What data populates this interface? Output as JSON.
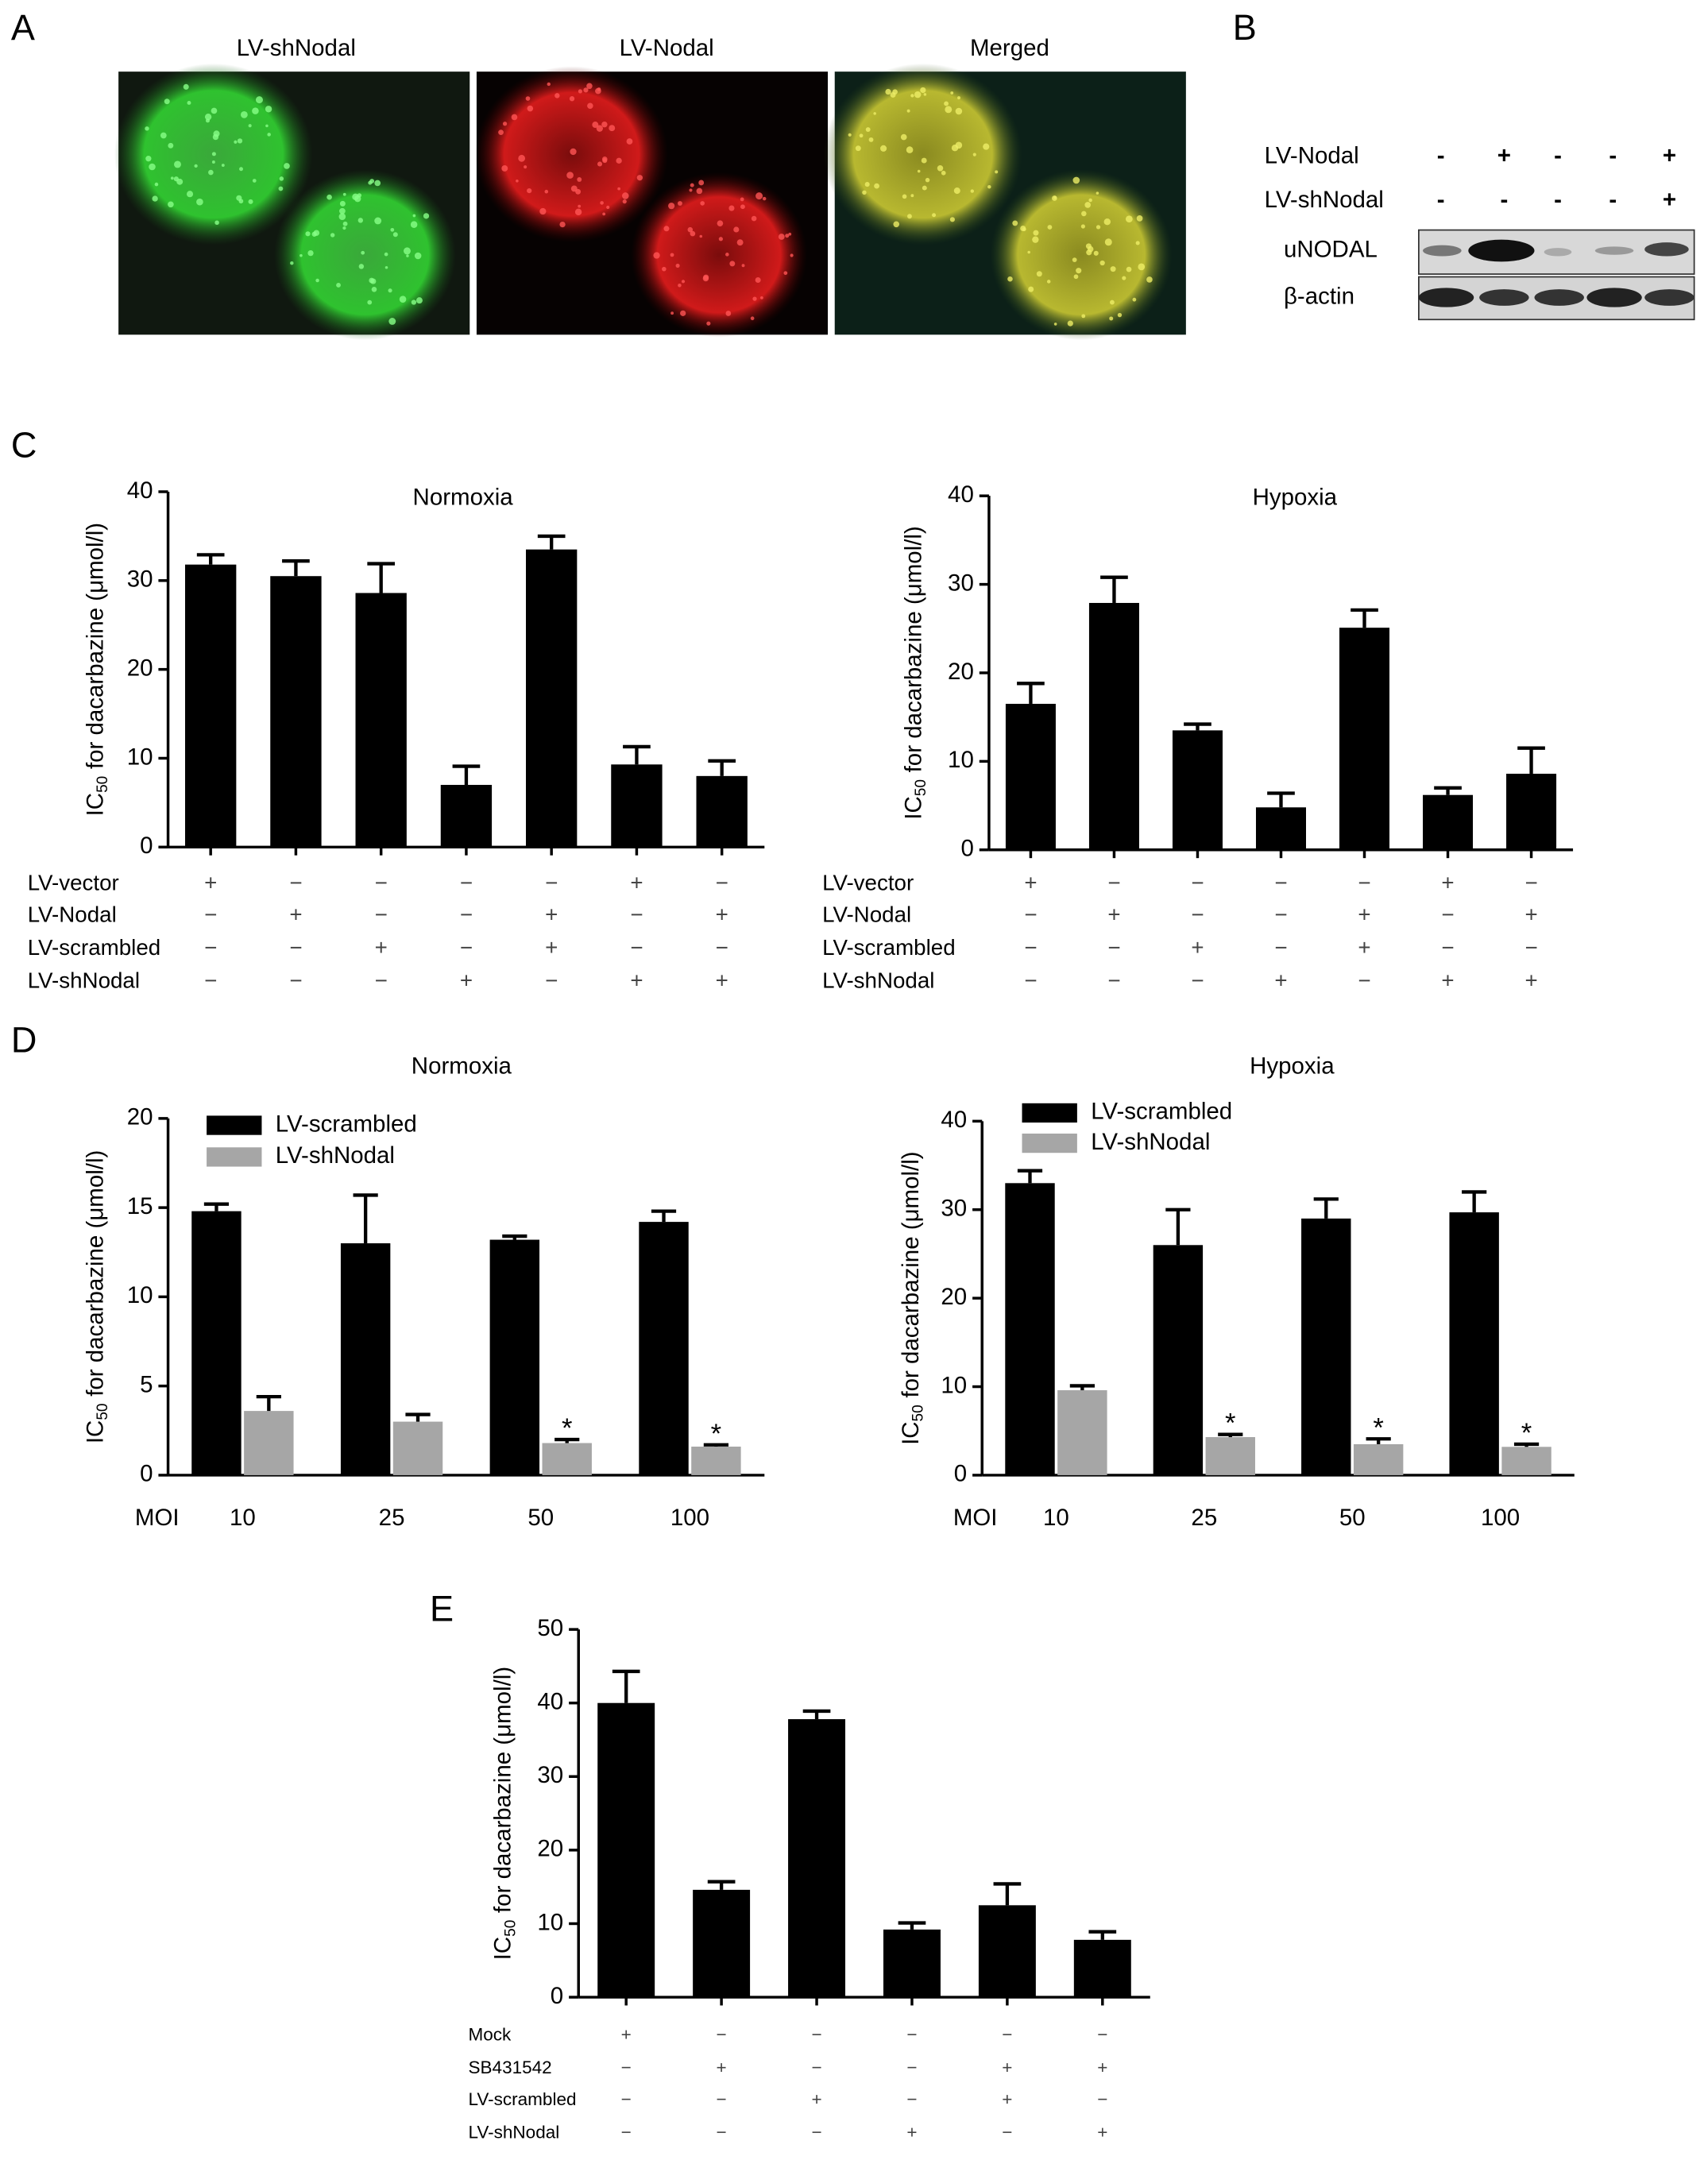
{
  "panel_labels": [
    "A",
    "B",
    "C",
    "D",
    "E"
  ],
  "panel_a": {
    "images": [
      "LV-shNodal",
      "LV-Nodal",
      "Merged"
    ]
  },
  "panel_b": {
    "conditions": [
      {
        "name": "LV-Nodal",
        "signs": [
          "-",
          "+",
          "-",
          "-",
          "+"
        ]
      },
      {
        "name": "LV-shNodal",
        "signs": [
          "-",
          "-",
          "-",
          "-",
          "+"
        ]
      }
    ],
    "bands": [
      "uNODAL",
      "β-actin"
    ]
  },
  "chart_data": [
    {
      "type": "bar",
      "title": "Normoxia",
      "y_label": [
        "IC",
        "50",
        "for dacarbazine (μmol/l)"
      ],
      "ylim": [
        0,
        40
      ],
      "yticks": [
        0,
        10,
        20,
        30,
        40
      ],
      "color": "#000000",
      "values": [
        31.8,
        30.5,
        28.6,
        7.0,
        33.5,
        9.3,
        8.0
      ],
      "errors": [
        1.1,
        1.7,
        3.3,
        2.1,
        1.5,
        2.0,
        1.7
      ],
      "conditions": [
        {
          "name": "LV-vector",
          "signs": [
            "+",
            "−",
            "−",
            "−",
            "−",
            "+",
            "−"
          ]
        },
        {
          "name": "LV-Nodal",
          "signs": [
            "−",
            "+",
            "−",
            "−",
            "+",
            "−",
            "+"
          ]
        },
        {
          "name": "LV-scrambled",
          "signs": [
            "−",
            "−",
            "+",
            "−",
            "+",
            "−",
            "−"
          ]
        },
        {
          "name": "LV-shNodal",
          "signs": [
            "−",
            "−",
            "−",
            "+",
            "−",
            "+",
            "+"
          ]
        }
      ]
    },
    {
      "type": "bar",
      "title": "Hypoxia",
      "y_label": [
        "IC",
        "50",
        "for dacarbazine (μmol/l)"
      ],
      "ylim": [
        0,
        40
      ],
      "yticks": [
        0,
        10,
        20,
        30,
        40
      ],
      "color": "#000000",
      "values": [
        16.5,
        27.9,
        13.5,
        4.8,
        25.1,
        6.2,
        8.6
      ],
      "errors": [
        2.3,
        2.9,
        0.7,
        1.6,
        2.0,
        0.8,
        2.9
      ],
      "conditions": [
        {
          "name": "LV-vector",
          "signs": [
            "+",
            "−",
            "−",
            "−",
            "−",
            "+",
            "−"
          ]
        },
        {
          "name": "LV-Nodal",
          "signs": [
            "−",
            "+",
            "−",
            "−",
            "+",
            "−",
            "+"
          ]
        },
        {
          "name": "LV-scrambled",
          "signs": [
            "−",
            "−",
            "+",
            "−",
            "+",
            "−",
            "−"
          ]
        },
        {
          "name": "LV-shNodal",
          "signs": [
            "−",
            "−",
            "−",
            "+",
            "−",
            "+",
            "+"
          ]
        }
      ]
    },
    {
      "type": "bar",
      "title": "Normoxia",
      "y_label": [
        "IC",
        "50",
        "for dacarbazine (μmol/l)"
      ],
      "x_label": "MOI",
      "categories": [
        "10",
        "25",
        "50",
        "100"
      ],
      "ylim": [
        0,
        20
      ],
      "yticks": [
        0,
        5,
        10,
        15,
        20
      ],
      "legend": "upper left",
      "series": [
        {
          "name": "LV-scrambled",
          "color": "#000000",
          "values": [
            14.8,
            13.0,
            13.2,
            14.2
          ],
          "errors": [
            0.4,
            2.7,
            0.2,
            0.6
          ]
        },
        {
          "name": "LV-shNodal",
          "color": "#a6a6a6",
          "values": [
            3.6,
            3.0,
            1.8,
            1.6
          ],
          "errors": [
            0.8,
            0.4,
            0.2,
            0.1
          ],
          "significance": [
            null,
            null,
            "*",
            "*"
          ]
        }
      ]
    },
    {
      "type": "bar",
      "title": "Hypoxia",
      "y_label": [
        "IC",
        "50",
        "for dacarbazine (μmol/l)"
      ],
      "x_label": "MOI",
      "categories": [
        "10",
        "25",
        "50",
        "100"
      ],
      "ylim": [
        0,
        40
      ],
      "yticks": [
        0,
        10,
        20,
        30,
        40
      ],
      "legend": "upper left",
      "series": [
        {
          "name": "LV-scrambled",
          "color": "#000000",
          "values": [
            33.0,
            26.0,
            29.0,
            29.7
          ],
          "errors": [
            1.4,
            4.0,
            2.2,
            2.3
          ]
        },
        {
          "name": "LV-shNodal",
          "color": "#a6a6a6",
          "values": [
            9.6,
            4.3,
            3.5,
            3.2
          ],
          "errors": [
            0.5,
            0.3,
            0.6,
            0.3
          ],
          "significance": [
            null,
            "*",
            "*",
            "*"
          ]
        }
      ]
    },
    {
      "type": "bar",
      "y_label": [
        "IC",
        "50",
        "for dacarbazine (μmol/l)"
      ],
      "ylim": [
        0,
        50
      ],
      "yticks": [
        0,
        10,
        20,
        30,
        40,
        50
      ],
      "color": "#000000",
      "values": [
        40.0,
        14.6,
        37.8,
        9.2,
        12.5,
        7.8
      ],
      "errors": [
        4.3,
        1.1,
        1.1,
        0.9,
        2.9,
        1.1
      ],
      "conditions": [
        {
          "name": "Mock",
          "signs": [
            "+",
            "−",
            "−",
            "−",
            "−",
            "−"
          ]
        },
        {
          "name": "SB431542",
          "signs": [
            "−",
            "+",
            "−",
            "−",
            "+",
            "+"
          ]
        },
        {
          "name": "LV-scrambled",
          "signs": [
            "−",
            "−",
            "+",
            "−",
            "+",
            "−"
          ]
        },
        {
          "name": "LV-shNodal",
          "signs": [
            "−",
            "−",
            "−",
            "+",
            "−",
            "+"
          ]
        }
      ]
    }
  ]
}
